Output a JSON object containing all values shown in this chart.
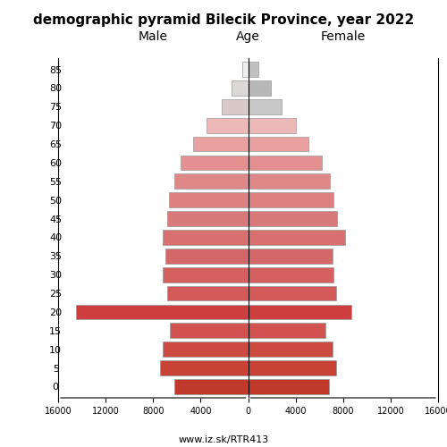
{
  "title": "demographic pyramid Bilecik Province, year 2022",
  "age_labels": [
    "0",
    "5",
    "10",
    "15",
    "20",
    "25",
    "30",
    "35",
    "40",
    "45",
    "50",
    "55",
    "60",
    "65",
    "70",
    "75",
    "80",
    "85"
  ],
  "male": [
    6200,
    7400,
    7200,
    6600,
    14500,
    6800,
    7200,
    7000,
    7200,
    6800,
    6700,
    6200,
    5700,
    4600,
    3500,
    2200,
    1400,
    500
  ],
  "female": [
    6800,
    7400,
    7100,
    6500,
    8700,
    7400,
    7200,
    7100,
    8200,
    7500,
    7200,
    6900,
    6200,
    5100,
    4000,
    2800,
    1900,
    900
  ],
  "male_colors": [
    "#c0392b",
    "#c94236",
    "#cd4a40",
    "#d25252",
    "#cd3e3e",
    "#d45a5a",
    "#d46060",
    "#d46868",
    "#d97070",
    "#d97878",
    "#de8080",
    "#de8888",
    "#e49090",
    "#e8a0a0",
    "#ecb8b8",
    "#d8c8c8",
    "#ddd8d8",
    "#eeeeee"
  ],
  "female_colors": [
    "#c0392b",
    "#c94236",
    "#cd4a40",
    "#d25252",
    "#cd3e3e",
    "#d45a5a",
    "#d46060",
    "#d46868",
    "#d97070",
    "#d97878",
    "#de8080",
    "#de8888",
    "#e49090",
    "#e8a0a0",
    "#ecb8b8",
    "#c8c8c8",
    "#b8b8b8",
    "#c0c0c0"
  ],
  "xlim": 16000,
  "xlabel_male": "Male",
  "xlabel_female": "Female",
  "xlabel_age": "Age",
  "source": "www.iz.sk/RTR413",
  "bar_height": 0.8,
  "edgecolor": "#999999",
  "linewidth": 0.5
}
